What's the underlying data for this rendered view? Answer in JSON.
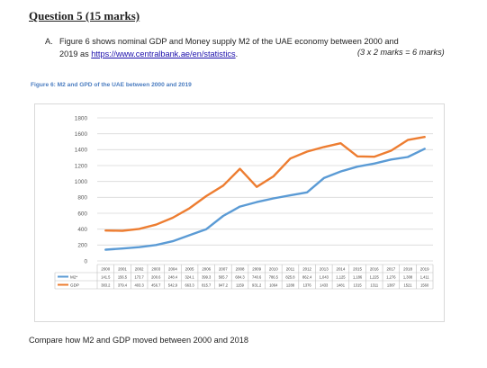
{
  "question": {
    "title": "Question 5 (15 marks)",
    "part_letter": "A.",
    "line1": "Figure 6 shows nominal GDP and Money supply M2 of the UAE economy between 2000 and",
    "line2_prefix": "2019 as ",
    "link_text": "https://www.centralbank.ae/en/statistics",
    "line2_suffix": ".",
    "marks": "(3 x 2 marks = 6 marks)",
    "figure_caption": "Figure 6:  M2 and GPD of the UAE between 2000 and 2019",
    "footer": "Compare how M2 and GDP moved between 2000 and 2018"
  },
  "chart_data": {
    "type": "line",
    "title": "",
    "xlabel": "",
    "ylabel": "",
    "ylim": [
      0,
      1800
    ],
    "yticks": [
      0,
      200,
      400,
      600,
      800,
      1000,
      1200,
      1400,
      1600,
      1800
    ],
    "grid": true,
    "legend": "data-table-left",
    "categories": [
      "2000",
      "2001",
      "2002",
      "2003",
      "2004",
      "2005",
      "2006",
      "2007",
      "2008",
      "2009",
      "2010",
      "2011",
      "2012",
      "2013",
      "2014",
      "2015",
      "2016",
      "2017",
      "2018",
      "2019"
    ],
    "series": [
      {
        "name": "M2*",
        "color": "#5b9bd5",
        "values": [
          141.5,
          156.5,
          173.7,
          200.6,
          248.4,
          324.1,
          399.3,
          565.7,
          684.3,
          740.6,
          786.5,
          825.8,
          862.4,
          1043,
          1125,
          1186,
          1225,
          1276,
          1308,
          1411
        ],
        "labels": [
          "141.5",
          "156.5",
          "173.7",
          "200.6",
          "248.4",
          "324.1",
          "399.3",
          "565.7",
          "684.3",
          "740.6",
          "786.5",
          "825.8",
          "862.4",
          "1,043",
          "1,125",
          "1,186",
          "1,225",
          "1,276",
          "1,308",
          "1,411"
        ]
      },
      {
        "name": "GDP",
        "color": "#ed7d31",
        "values": [
          383.2,
          379.4,
          403.3,
          456.7,
          542.9,
          663.3,
          815.7,
          947.2,
          1159,
          931.2,
          1064,
          1288,
          1376,
          1433,
          1481,
          1315,
          1311,
          1387,
          1521,
          1560
        ],
        "labels": [
          "383.2",
          "379.4",
          "403.3",
          "456.7",
          "542.9",
          "663.3",
          "815.7",
          "947.2",
          "1159",
          "931.2",
          "1064",
          "1288",
          "1376",
          "1433",
          "1481",
          "1315",
          "1311",
          "1387",
          "1521",
          "1560"
        ]
      }
    ]
  }
}
